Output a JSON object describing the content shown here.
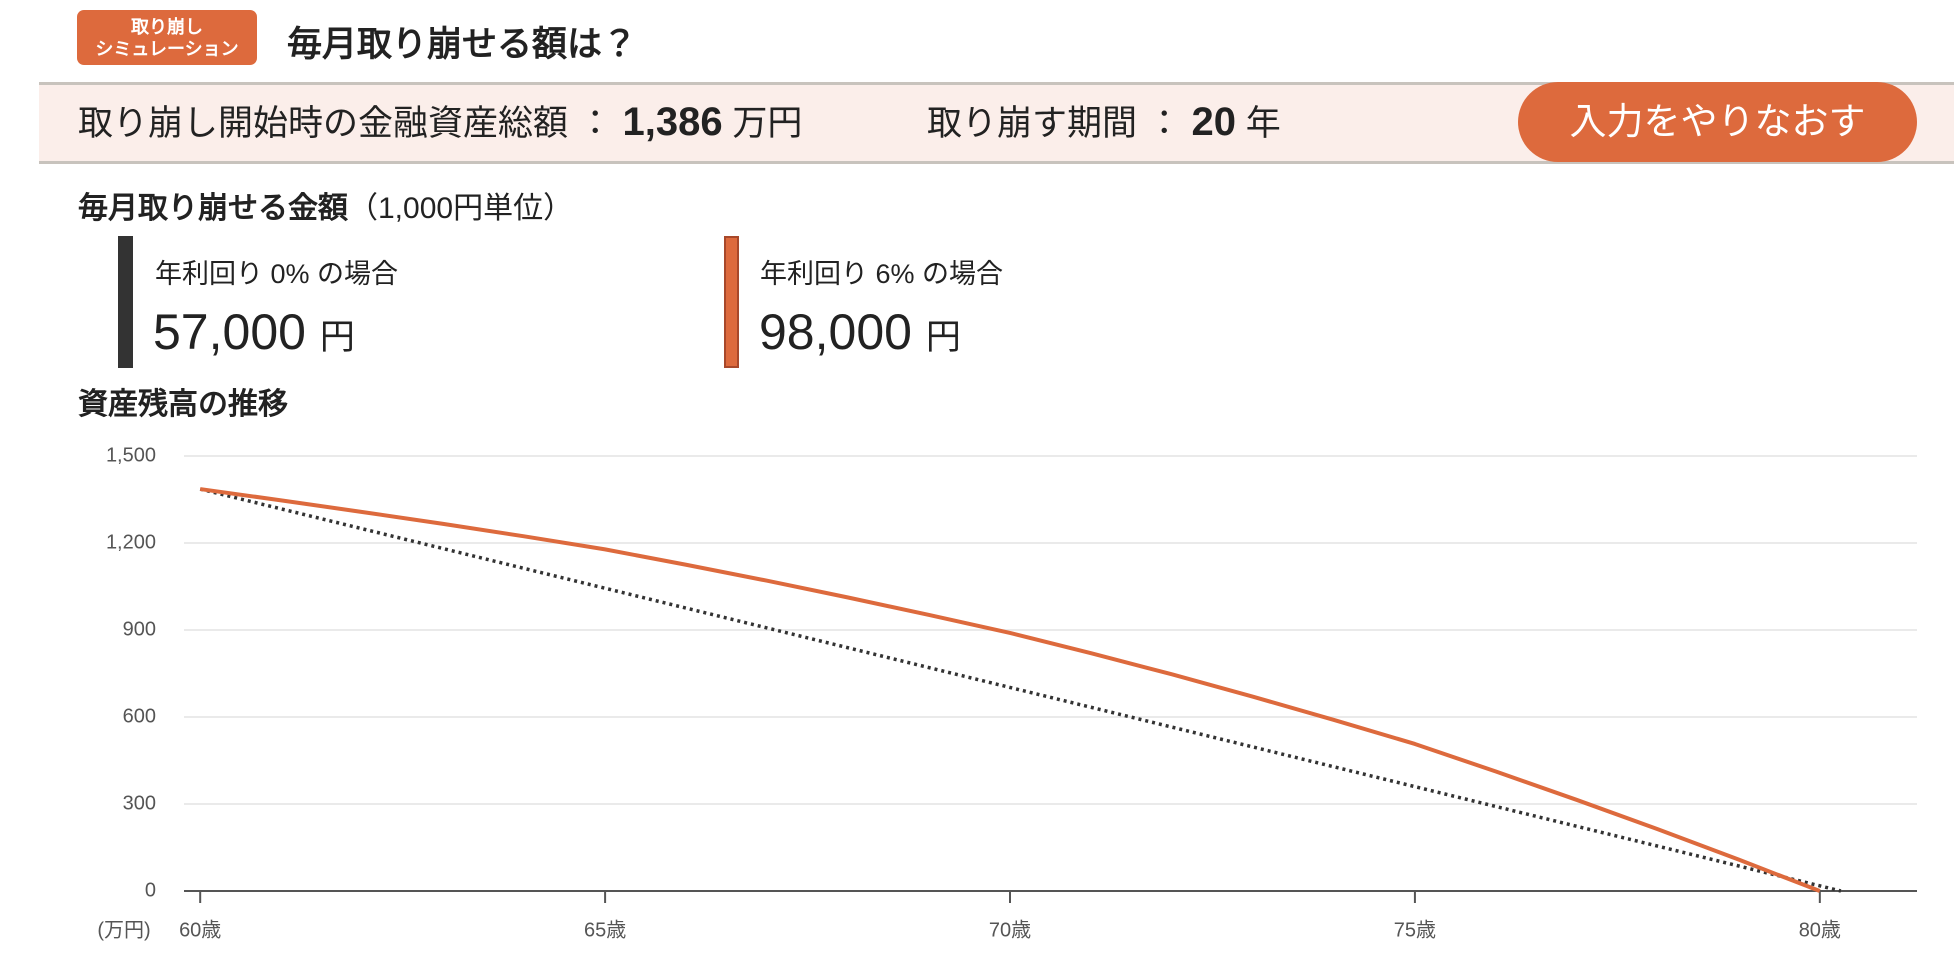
{
  "header": {
    "badge_line1": "取り崩し",
    "badge_line2": "シミュレーション",
    "title": "毎月取り崩せる額は？"
  },
  "summary": {
    "asset_label": "取り崩し開始時の金融資産総額",
    "separator": "：",
    "asset_value": "1,386",
    "asset_unit": "万円",
    "period_label": "取り崩す期間",
    "period_value": "20",
    "period_unit": "年",
    "button": "入力をやりなおす"
  },
  "monthly": {
    "heading": "毎月取り崩せる金額",
    "heading_note": "（1,000円単位）",
    "cards": [
      {
        "label": "年利回り 0% の場合",
        "amount": "57,000",
        "unit": "円"
      },
      {
        "label": "年利回り 6% の場合",
        "amount": "98,000",
        "unit": "円"
      }
    ]
  },
  "chart_data": {
    "type": "line",
    "title": "資産残高の推移",
    "y_unit": "(万円)",
    "xlim": [
      59.8,
      81.2
    ],
    "xticks": [
      {
        "value": 60,
        "label": "60歳"
      },
      {
        "value": 65,
        "label": "65歳"
      },
      {
        "value": 70,
        "label": "70歳"
      },
      {
        "value": 75,
        "label": "75歳"
      },
      {
        "value": 80,
        "label": "80歳"
      }
    ],
    "ylim": [
      0,
      1500
    ],
    "yticks": [
      0,
      300,
      600,
      900,
      {
        "value": 1200,
        "label": "1,200"
      },
      {
        "value": 1500,
        "label": "1,500"
      }
    ],
    "grid": true,
    "series": [
      {
        "color": "#333333",
        "dash": "dotted",
        "x": [
          60,
          80.26
        ],
        "values": [
          1386,
          0
        ]
      },
      {
        "color": "#dd6a3d",
        "dash": "solid",
        "x": [
          60,
          61,
          62,
          63,
          64,
          65,
          66,
          67,
          68,
          69,
          70,
          71,
          72,
          73,
          74,
          75,
          76,
          77,
          78,
          79,
          80
        ],
        "values": [
          1386,
          1347,
          1307,
          1266,
          1223,
          1178,
          1125,
          1070,
          1012,
          952,
          890,
          820,
          747,
          670,
          590,
          507,
          412,
          314,
          213,
          108,
          0
        ]
      }
    ]
  }
}
